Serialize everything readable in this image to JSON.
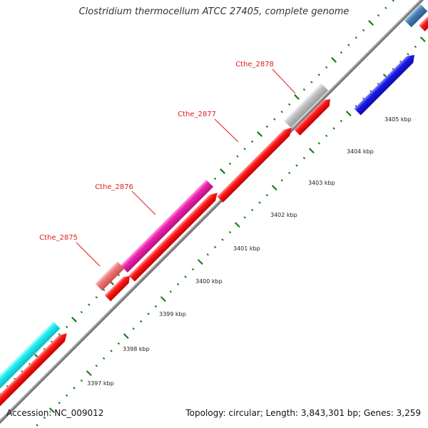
{
  "map": {
    "title": "Clostridium thermocellum ATCC 27405, complete genome",
    "accession_text": "Accession: NC_009012",
    "summary_text": "Topology: circular; Length: 3,843,301 bp; Genes: 3,259",
    "colors": {
      "background": "#ffffff",
      "backbone": "#888888",
      "tick": "#1b7d1b",
      "gene_label": "#e21b1b",
      "scale_label": "#222222"
    },
    "scale_labels": [
      "3397 kbp",
      "3398 kbp",
      "3399 kbp",
      "3400 kbp",
      "3401 kbp",
      "3402 kbp",
      "3403 kbp",
      "3404 kbp",
      "3405 kbp"
    ],
    "gene_labels": [
      "Cthe_2875",
      "Cthe_2876",
      "Cthe_2877",
      "Cthe_2878"
    ],
    "feature_colors": {
      "cds": "#ff1a1a",
      "cyan": "#22eeee",
      "pink": "#ee7777",
      "magenta": "#ee22aa",
      "gray": "#c2c2c2",
      "blue": "#1a1ae8",
      "steelblue": "#4a80b4"
    }
  }
}
